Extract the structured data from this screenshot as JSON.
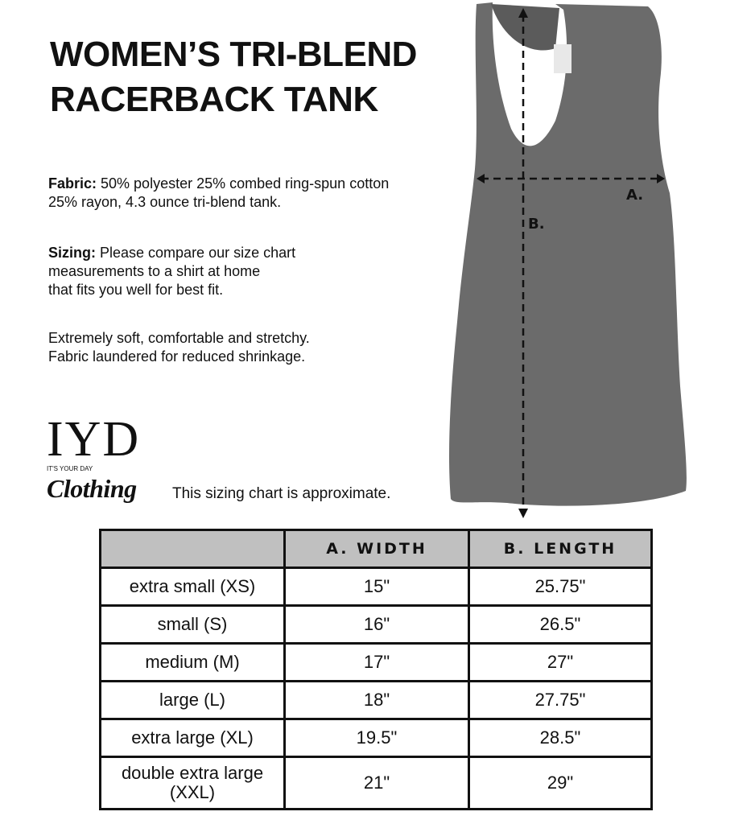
{
  "title_line1": "WOMEN’S TRI-BLEND",
  "title_line2": "RACERBACK TANK",
  "fabric_label": "Fabric:",
  "fabric_text1": " 50% polyester 25% combed ring-spun cotton",
  "fabric_text2": "25% rayon, 4.3 ounce tri-blend tank.",
  "sizing_label": "Sizing:",
  "sizing_text1": " Please compare our size chart",
  "sizing_text2": "measurements to a shirt at home",
  "sizing_text3": "that fits you well for best fit.",
  "soft_text1": "Extremely soft, comfortable and stretchy.",
  "soft_text2": "Fabric laundered for reduced shrinkage.",
  "logo": {
    "main": "IYD",
    "sub": "IT'S YOUR DAY",
    "script": "Clothing"
  },
  "approx_note": "This sizing chart is approximate.",
  "diagram": {
    "width_marker": "A.",
    "length_marker": "B.",
    "tank_color": "#6b6b6b"
  },
  "table": {
    "headers": [
      "",
      "A. WIDTH",
      "B. LENGTH"
    ],
    "header_bg": "#c0c0c0",
    "rows": [
      {
        "size": "extra small (XS)",
        "width": "15\"",
        "length": "25.75\""
      },
      {
        "size": "small (S)",
        "width": "16\"",
        "length": "26.5\""
      },
      {
        "size": "medium (M)",
        "width": "17\"",
        "length": "27\""
      },
      {
        "size": "large (L)",
        "width": "18\"",
        "length": "27.75\""
      },
      {
        "size": "extra large (XL)",
        "width": "19.5\"",
        "length": "28.5\""
      },
      {
        "size": "double extra large (XXL)",
        "width": "21\"",
        "length": "29\""
      }
    ]
  }
}
